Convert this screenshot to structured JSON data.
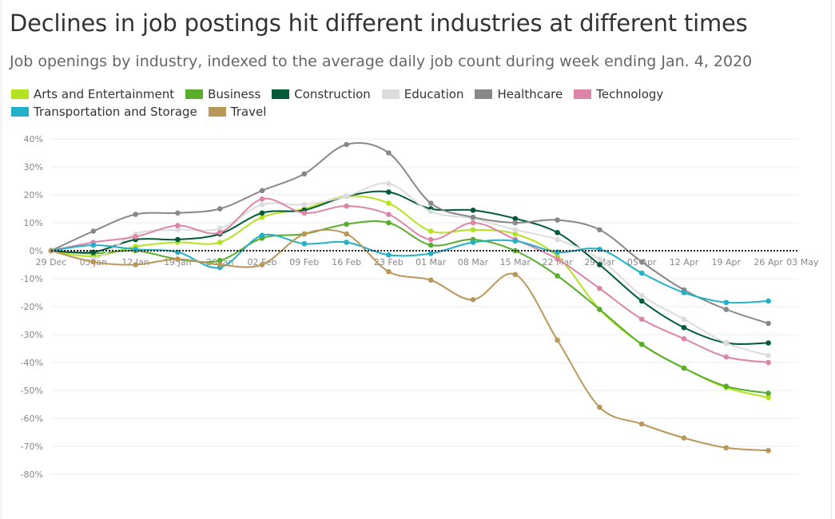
{
  "chart_data": {
    "type": "line",
    "title": "Declines in job postings hit different industries at different times",
    "subtitle": "Job openings by industry, indexed to the average daily job count during week ending Jan. 4, 2020",
    "xlabel": "",
    "ylabel": "",
    "x": [
      "29 Dec",
      "05 Jan",
      "12 Jan",
      "19 Jan",
      "26 Jan",
      "02 Feb",
      "09 Feb",
      "16 Feb",
      "23 Feb",
      "01 Mar",
      "08 Mar",
      "15 Mar",
      "22 Mar",
      "29 Mar",
      "05 Apr",
      "12 Apr",
      "19 Apr",
      "26 Apr"
    ],
    "x_ticks": [
      "29 Dec",
      "05 Jan",
      "12 Jan",
      "19 Jan",
      "26 Jan",
      "02 Feb",
      "09 Feb",
      "16 Feb",
      "23 Feb",
      "01 Mar",
      "08 Mar",
      "15 Mar",
      "22 Mar",
      "29 Mar",
      "05 Apr",
      "12 Apr",
      "19 Apr",
      "26 Apr",
      "03 May"
    ],
    "y_ticks": [
      "40%",
      "30%",
      "20%",
      "10%",
      "0%",
      "-10%",
      "-20%",
      "-30%",
      "-40%",
      "-50%",
      "-60%",
      "-70%",
      "-80%"
    ],
    "ylim": [
      -80,
      40
    ],
    "grid": true,
    "zero_line": "dotted",
    "legend_position": "top-left",
    "series": [
      {
        "name": "Arts and Entertainment",
        "color": "#b3e21f",
        "values": [
          0,
          -2,
          1.5,
          3,
          3,
          12,
          15,
          19.5,
          17,
          7,
          7.5,
          6,
          -2,
          -21,
          -33.5,
          -42,
          -49,
          -52.5
        ]
      },
      {
        "name": "Business",
        "color": "#58ad2b",
        "values": [
          0,
          -1,
          0,
          -3,
          -3.5,
          4.5,
          6,
          9.5,
          10,
          2,
          4,
          0,
          -9,
          -21,
          -33.5,
          -42,
          -48.5,
          -51
        ]
      },
      {
        "name": "Construction",
        "color": "#005a38",
        "values": [
          0,
          -0.5,
          4,
          4,
          6,
          13.5,
          14.5,
          19.5,
          21,
          15,
          14.5,
          11.5,
          6.5,
          -5,
          -18,
          -27.5,
          -33,
          -33
        ]
      },
      {
        "name": "Education",
        "color": "#dcdcdc",
        "values": [
          0,
          -3,
          6,
          7.5,
          8,
          16.5,
          16.5,
          19.5,
          24,
          14,
          11.5,
          7.5,
          4,
          -3,
          -16,
          -24.5,
          -33,
          -37.5
        ]
      },
      {
        "name": "Healthcare",
        "color": "#888888",
        "values": [
          0,
          7,
          13,
          13.5,
          15,
          21.5,
          27.5,
          38,
          35,
          17,
          12,
          10,
          11,
          7.5,
          -4,
          -14,
          -21,
          -26
        ]
      },
      {
        "name": "Technology",
        "color": "#dc85a8",
        "values": [
          0,
          3,
          5,
          9,
          6.5,
          18.5,
          13.5,
          16,
          13,
          4,
          10,
          4,
          -3,
          -13.5,
          -24.5,
          -31.5,
          -38,
          -40
        ]
      },
      {
        "name": "Transportation and Storage",
        "color": "#22b0c8",
        "values": [
          0,
          2,
          0.5,
          -0.5,
          -6,
          5.5,
          2.5,
          3,
          -1.5,
          -1,
          3,
          3.5,
          -0.5,
          0.5,
          -8,
          -15,
          -18.5,
          -18
        ]
      },
      {
        "name": "Travel",
        "color": "#b9975b",
        "values": [
          0,
          -4,
          -5,
          -3,
          -5,
          -5,
          6,
          6,
          -7.5,
          -10.5,
          -17.5,
          -8.5,
          -32,
          -56,
          -62,
          -67,
          -70.5,
          -71.5
        ]
      }
    ]
  }
}
